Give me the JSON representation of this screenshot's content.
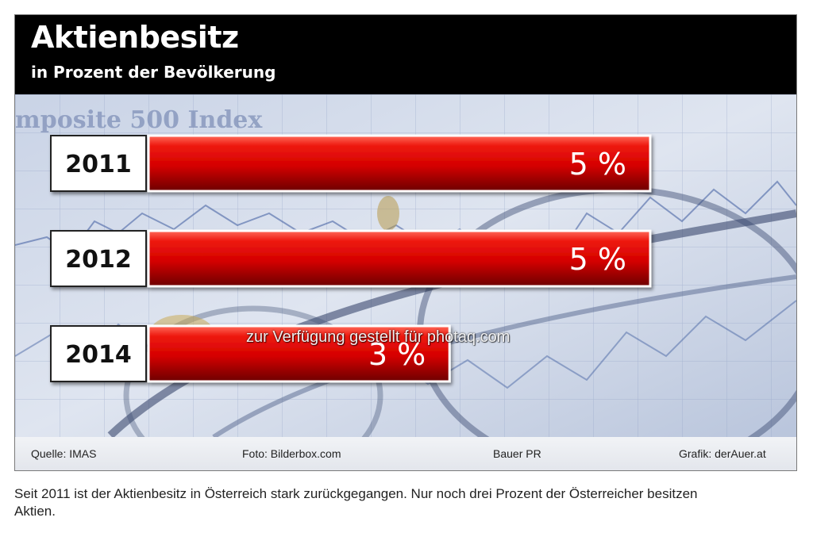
{
  "title": "Aktienbesitz",
  "subtitle": "in Prozent der Bevölkerung",
  "chart_data": {
    "type": "bar",
    "orientation": "horizontal",
    "categories": [
      "2011",
      "2012",
      "2014"
    ],
    "values": [
      5,
      5,
      3
    ],
    "value_labels": [
      "5 %",
      "5 %",
      "3 %"
    ],
    "xlim": [
      0,
      5
    ],
    "bar_color": "#d40000",
    "grid": false
  },
  "footer": {
    "source": "Quelle: IMAS",
    "photo": "Foto: Bilderbox.com",
    "agency": "Bauer PR",
    "graphic": "Grafik: derAuer.at"
  },
  "watermark": "zur Verfügung gestellt für photaq.com",
  "caption": "Seit 2011 ist der Aktienbesitz in Österreich stark zurückgegangen. Nur noch drei Prozent der Österreicher besitzen Aktien.",
  "background_text": "mposite 500 Index"
}
